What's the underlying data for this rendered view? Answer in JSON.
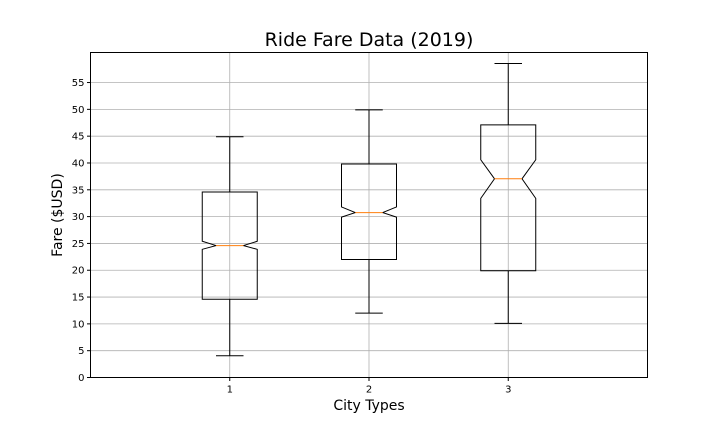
{
  "chart_data": {
    "type": "boxplot",
    "title": "Ride Fare Data (2019)",
    "xlabel": "City Types",
    "ylabel": "Fare ($USD)",
    "categories": [
      "1",
      "2",
      "3"
    ],
    "boxes": [
      {
        "whisker_low": 4.05,
        "q1": 14.6,
        "median": 24.6,
        "q3": 34.6,
        "whisker_high": 44.9,
        "notch_low": 23.9,
        "notch_high": 25.4
      },
      {
        "whisker_low": 12.0,
        "q1": 22.0,
        "median": 30.75,
        "q3": 39.8,
        "whisker_high": 49.9,
        "notch_low": 29.9,
        "notch_high": 31.8
      },
      {
        "whisker_low": 10.1,
        "q1": 19.9,
        "median": 37.05,
        "q3": 47.1,
        "whisker_high": 58.55,
        "notch_low": 33.4,
        "notch_high": 40.6
      }
    ],
    "ylim": [
      0,
      60.6
    ],
    "yticks": [
      0,
      5,
      10,
      15,
      20,
      25,
      30,
      35,
      40,
      45,
      50,
      55
    ],
    "grid": true,
    "notched": true,
    "colors": {
      "box": "#000000",
      "median": "#ff7f0e",
      "grid": "#b0b0b0"
    }
  }
}
